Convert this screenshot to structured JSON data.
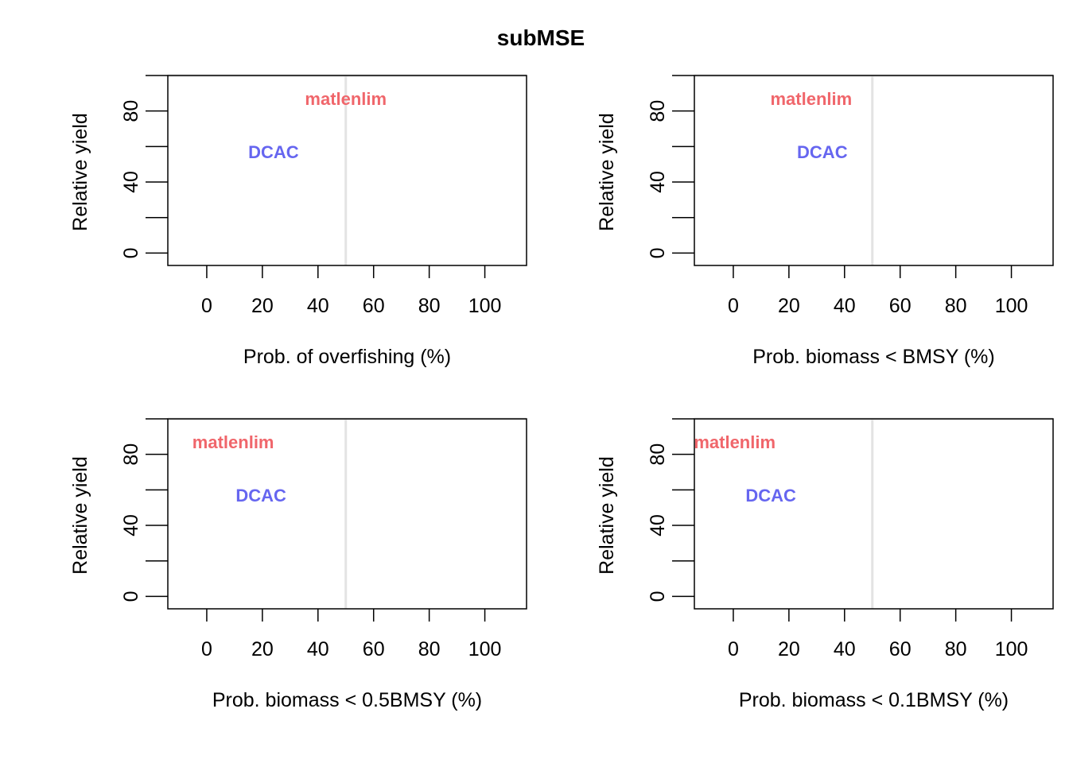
{
  "title": "subMSE",
  "chart_data": [
    {
      "type": "scatter",
      "xlabel": "Prob. of overfishing (%)",
      "ylabel": "Relative yield",
      "xlim": [
        -14,
        115
      ],
      "ylim": [
        -7,
        100
      ],
      "xticks": [
        0,
        20,
        40,
        60,
        80,
        100
      ],
      "yticks": [
        0,
        20,
        40,
        60,
        80,
        100
      ],
      "ytick_labels": [
        "0",
        "",
        "40",
        "",
        "80",
        ""
      ],
      "reference_lines": {
        "x": 50,
        "y": 100
      },
      "points": [
        {
          "label": "matlenlim",
          "x": 50,
          "y": 87,
          "color": "#f0666b"
        },
        {
          "label": "DCAC",
          "x": 24,
          "y": 57,
          "color": "#6666f0"
        }
      ]
    },
    {
      "type": "scatter",
      "xlabel": "Prob. biomass < BMSY (%)",
      "ylabel": "Relative yield",
      "xlim": [
        -14,
        115
      ],
      "ylim": [
        -7,
        100
      ],
      "xticks": [
        0,
        20,
        40,
        60,
        80,
        100
      ],
      "yticks": [
        0,
        20,
        40,
        60,
        80,
        100
      ],
      "ytick_labels": [
        "0",
        "",
        "40",
        "",
        "80",
        ""
      ],
      "reference_lines": {
        "x": 50,
        "y": 100
      },
      "points": [
        {
          "label": "matlenlim",
          "x": 28,
          "y": 87,
          "color": "#f0666b"
        },
        {
          "label": "DCAC",
          "x": 32,
          "y": 57,
          "color": "#6666f0"
        }
      ]
    },
    {
      "type": "scatter",
      "xlabel": "Prob. biomass < 0.5BMSY (%)",
      "ylabel": "Relative yield",
      "xlim": [
        -14,
        115
      ],
      "ylim": [
        -7,
        100
      ],
      "xticks": [
        0,
        20,
        40,
        60,
        80,
        100
      ],
      "yticks": [
        0,
        20,
        40,
        60,
        80,
        100
      ],
      "ytick_labels": [
        "0",
        "",
        "40",
        "",
        "80",
        ""
      ],
      "reference_lines": {
        "x": 50,
        "y": 100
      },
      "points": [
        {
          "label": "matlenlim",
          "x": 9.5,
          "y": 87,
          "color": "#f0666b"
        },
        {
          "label": "DCAC",
          "x": 19.5,
          "y": 57,
          "color": "#6666f0"
        }
      ]
    },
    {
      "type": "scatter",
      "xlabel": "Prob. biomass < 0.1BMSY (%)",
      "ylabel": "Relative yield",
      "xlim": [
        -14,
        115
      ],
      "ylim": [
        -7,
        100
      ],
      "xticks": [
        0,
        20,
        40,
        60,
        80,
        100
      ],
      "yticks": [
        0,
        20,
        40,
        60,
        80,
        100
      ],
      "ytick_labels": [
        "0",
        "",
        "40",
        "",
        "80",
        ""
      ],
      "reference_lines": {
        "x": 50,
        "y": 100
      },
      "points": [
        {
          "label": "matlenlim",
          "x": 0.5,
          "y": 87,
          "color": "#f0666b"
        },
        {
          "label": "DCAC",
          "x": 13.5,
          "y": 57,
          "color": "#6666f0"
        }
      ]
    }
  ]
}
